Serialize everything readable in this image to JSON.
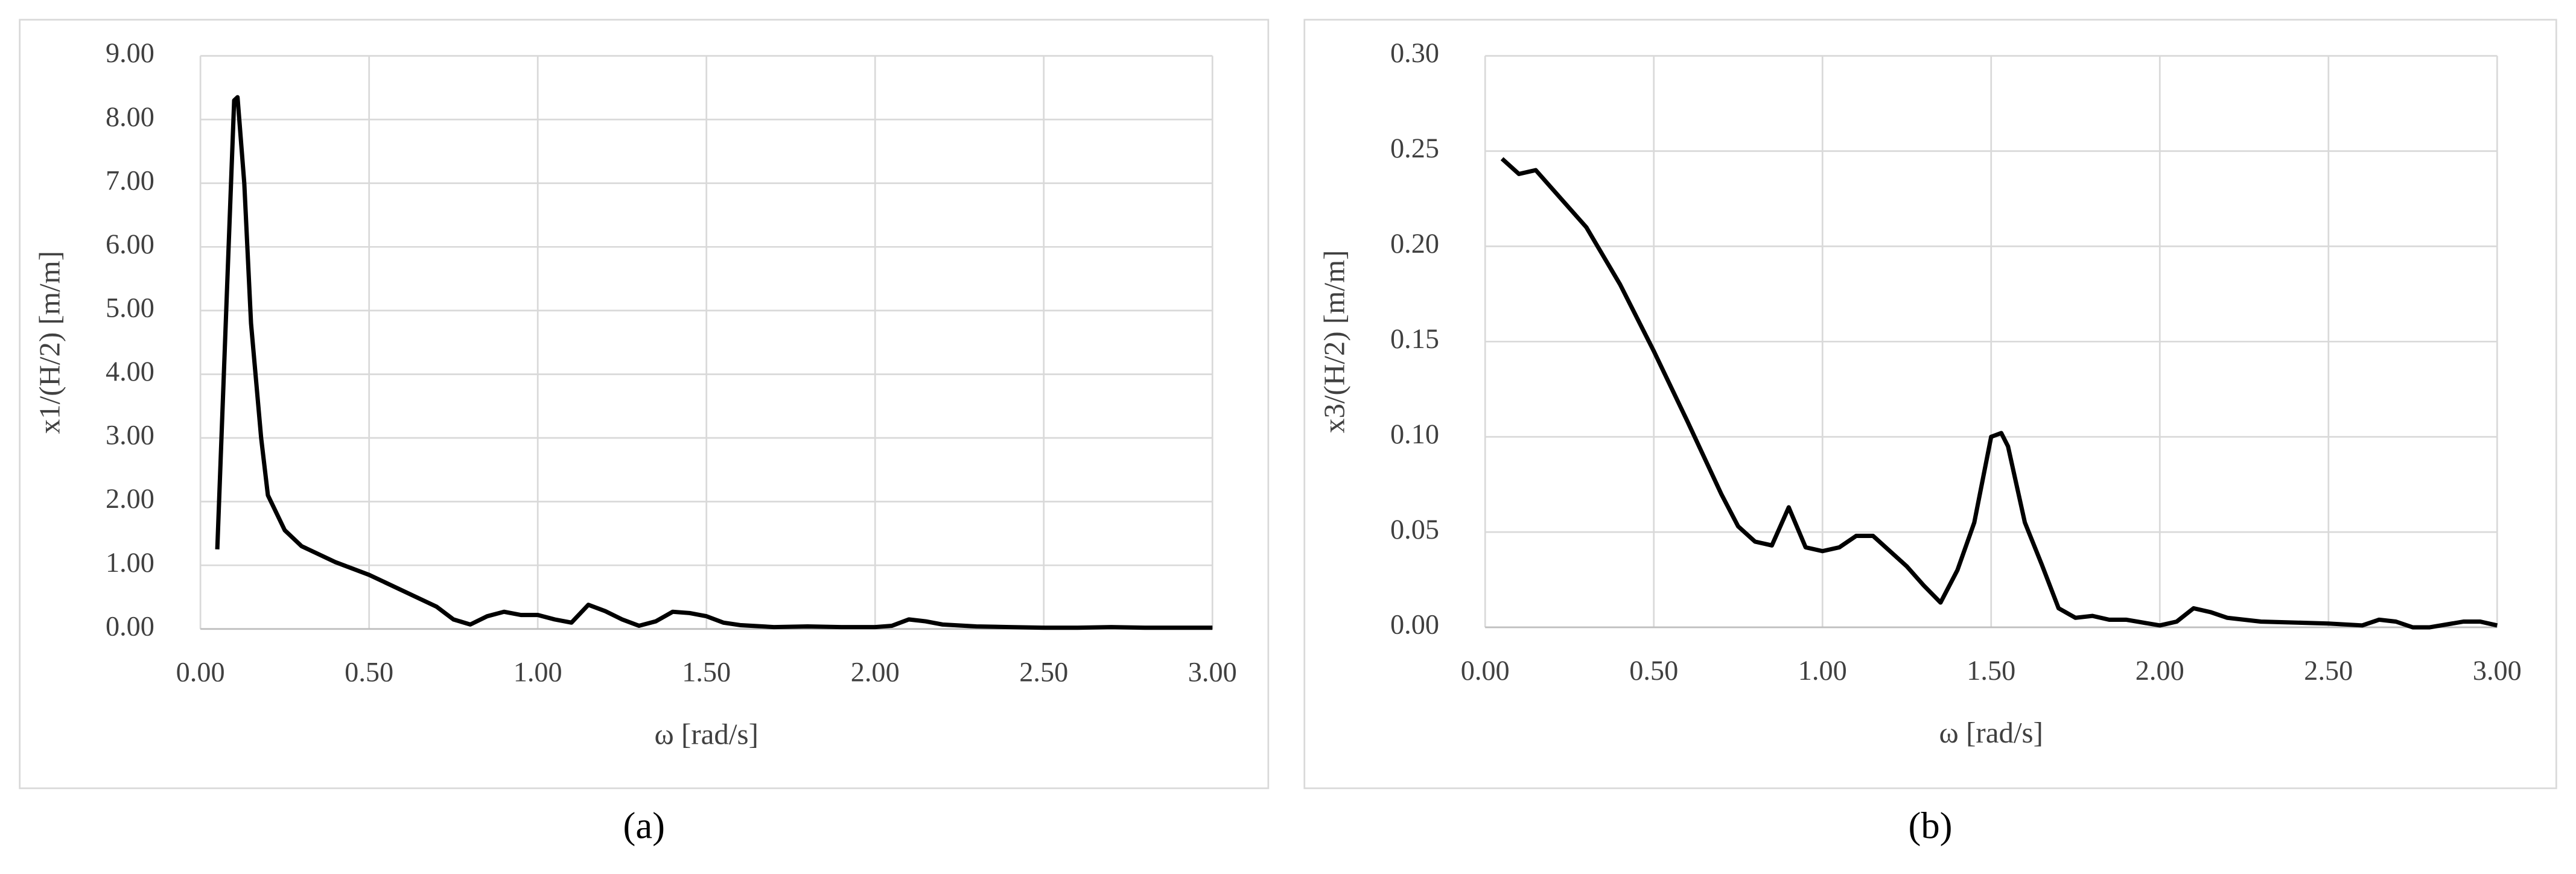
{
  "chart_data": [
    {
      "type": "line",
      "caption": "(a)",
      "x_label": "ω [rad/s]",
      "y_label": "x1/(H/2)  [m/m]",
      "xlim": [
        0,
        3
      ],
      "ylim": [
        0,
        9
      ],
      "xticks": [
        {
          "value": 0,
          "label": "0.00"
        },
        {
          "value": 0.5,
          "label": "0.50"
        },
        {
          "value": 1,
          "label": "1.00"
        },
        {
          "value": 1.5,
          "label": "1.50"
        },
        {
          "value": 2,
          "label": "2.00"
        },
        {
          "value": 2.5,
          "label": "2.50"
        },
        {
          "value": 3,
          "label": "3.00"
        }
      ],
      "yticks": [
        {
          "value": 0,
          "label": "0.00"
        },
        {
          "value": 1,
          "label": "1.00"
        },
        {
          "value": 2,
          "label": "2.00"
        },
        {
          "value": 3,
          "label": "3.00"
        },
        {
          "value": 4,
          "label": "4.00"
        },
        {
          "value": 5,
          "label": "5.00"
        },
        {
          "value": 6,
          "label": "6.00"
        },
        {
          "value": 7,
          "label": "7.00"
        },
        {
          "value": 8,
          "label": "8.00"
        },
        {
          "value": 9,
          "label": "9.00"
        }
      ],
      "grid": true,
      "color": "#000000",
      "x": [
        0.05,
        0.08,
        0.1,
        0.11,
        0.13,
        0.15,
        0.18,
        0.2,
        0.25,
        0.3,
        0.4,
        0.5,
        0.6,
        0.7,
        0.75,
        0.8,
        0.85,
        0.9,
        0.95,
        1.0,
        1.05,
        1.1,
        1.15,
        1.2,
        1.25,
        1.3,
        1.35,
        1.4,
        1.45,
        1.5,
        1.55,
        1.6,
        1.7,
        1.8,
        1.9,
        2.0,
        2.05,
        2.1,
        2.15,
        2.2,
        2.3,
        2.4,
        2.5,
        2.6,
        2.7,
        2.8,
        2.9,
        3.0
      ],
      "values": [
        1.25,
        5.5,
        8.3,
        8.35,
        7.0,
        4.8,
        3.0,
        2.1,
        1.55,
        1.3,
        1.05,
        0.85,
        0.6,
        0.35,
        0.15,
        0.07,
        0.2,
        0.27,
        0.22,
        0.22,
        0.15,
        0.1,
        0.38,
        0.28,
        0.15,
        0.05,
        0.12,
        0.27,
        0.25,
        0.2,
        0.1,
        0.06,
        0.03,
        0.04,
        0.03,
        0.03,
        0.05,
        0.15,
        0.12,
        0.07,
        0.04,
        0.03,
        0.02,
        0.02,
        0.03,
        0.02,
        0.02,
        0.02
      ]
    },
    {
      "type": "line",
      "caption": "(b)",
      "x_label": "ω [rad/s]",
      "y_label": "x3/(H/2)  [m/m]",
      "xlim": [
        0,
        3
      ],
      "ylim": [
        0,
        0.3
      ],
      "xticks": [
        {
          "value": 0,
          "label": "0.00"
        },
        {
          "value": 0.5,
          "label": "0.50"
        },
        {
          "value": 1,
          "label": "1.00"
        },
        {
          "value": 1.5,
          "label": "1.50"
        },
        {
          "value": 2,
          "label": "2.00"
        },
        {
          "value": 2.5,
          "label": "2.50"
        },
        {
          "value": 3,
          "label": "3.00"
        }
      ],
      "yticks": [
        {
          "value": 0,
          "label": "0.00"
        },
        {
          "value": 0.05,
          "label": "0.05"
        },
        {
          "value": 0.1,
          "label": "0.10"
        },
        {
          "value": 0.15,
          "label": "0.15"
        },
        {
          "value": 0.2,
          "label": "0.20"
        },
        {
          "value": 0.25,
          "label": "0.25"
        },
        {
          "value": 0.3,
          "label": "0.30"
        }
      ],
      "grid": true,
      "color": "#000000",
      "x": [
        0.05,
        0.1,
        0.15,
        0.2,
        0.3,
        0.4,
        0.5,
        0.6,
        0.7,
        0.75,
        0.8,
        0.85,
        0.9,
        0.95,
        1.0,
        1.05,
        1.1,
        1.15,
        1.2,
        1.25,
        1.3,
        1.35,
        1.4,
        1.45,
        1.5,
        1.53,
        1.55,
        1.6,
        1.65,
        1.7,
        1.75,
        1.8,
        1.85,
        1.9,
        2.0,
        2.05,
        2.1,
        2.15,
        2.2,
        2.3,
        2.5,
        2.6,
        2.65,
        2.7,
        2.75,
        2.8,
        2.9,
        2.95,
        3.0
      ],
      "values": [
        0.246,
        0.238,
        0.24,
        0.23,
        0.21,
        0.18,
        0.145,
        0.108,
        0.07,
        0.053,
        0.045,
        0.043,
        0.063,
        0.042,
        0.04,
        0.042,
        0.048,
        0.048,
        0.04,
        0.032,
        0.022,
        0.013,
        0.03,
        0.055,
        0.1,
        0.102,
        0.095,
        0.055,
        0.033,
        0.01,
        0.005,
        0.006,
        0.004,
        0.004,
        0.001,
        0.003,
        0.01,
        0.008,
        0.005,
        0.003,
        0.002,
        0.001,
        0.004,
        0.003,
        0.0,
        0.0,
        0.003,
        0.003,
        0.001
      ]
    }
  ]
}
